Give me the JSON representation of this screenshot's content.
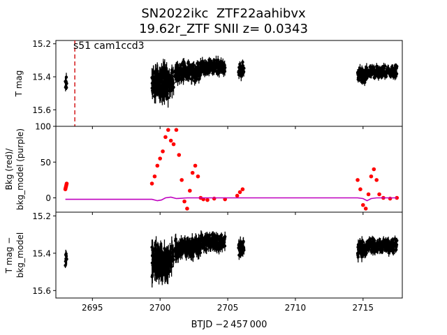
{
  "chart_data": {
    "type": "scatter",
    "title_line1": "SN2022ikc  ZTF22aahibvx",
    "title_line2": "19.62r_ZTF SNII z= 0.0343",
    "annotation": "s51 cam1ccd3",
    "xlabel": "BTJD −2 457 000",
    "xlim": [
      2692.3,
      2717.9
    ],
    "xticks": [
      2695,
      2700,
      2705,
      2710,
      2715
    ],
    "xtick_labels": [
      "2695",
      "2700",
      "2705",
      "2710",
      "2715"
    ],
    "vline_x": 2693.7,
    "colors": {
      "points": "#000000",
      "bkg": "#ff0000",
      "bkg_model": "#bf00bf",
      "vline": "#d62728"
    },
    "panels": [
      {
        "name": "T mag",
        "ylabel": [
          "T mag"
        ],
        "ylim": [
          15.18,
          15.7
        ],
        "inverted": true,
        "yticks": [
          15.2,
          15.4,
          15.6
        ],
        "ytick_labels": [
          "15.2",
          "15.4",
          "15.6"
        ],
        "segments": [
          {
            "x0": 2693.0,
            "x1": 2693.1,
            "center": 15.43,
            "spread": 0.05,
            "n": 8
          },
          {
            "x0": 2699.4,
            "x1": 2700.6,
            "center": 15.44,
            "spread": 0.1,
            "n": 140
          },
          {
            "x0": 2700.6,
            "x1": 2701.0,
            "center": 15.43,
            "spread": 0.09,
            "n": 30
          },
          {
            "x0": 2701.1,
            "x1": 2703.0,
            "center": 15.37,
            "spread": 0.06,
            "n": 160
          },
          {
            "x0": 2703.0,
            "x1": 2704.8,
            "center": 15.34,
            "spread": 0.05,
            "n": 130
          },
          {
            "x0": 2705.8,
            "x1": 2706.2,
            "center": 15.36,
            "spread": 0.05,
            "n": 30
          },
          {
            "x0": 2714.6,
            "x1": 2715.3,
            "center": 15.39,
            "spread": 0.05,
            "n": 60
          },
          {
            "x0": 2715.3,
            "x1": 2717.5,
            "center": 15.37,
            "spread": 0.04,
            "n": 160
          }
        ]
      },
      {
        "name": "Bkg",
        "ylabel": [
          "Bkg (red)/",
          "bkg_model (purple)"
        ],
        "ylim": [
          -20,
          100
        ],
        "inverted": false,
        "yticks": [
          0,
          50,
          100
        ],
        "ytick_labels": [
          "0",
          "50",
          "100"
        ],
        "bkg_curve": {
          "x": [
            2693.0,
            2693.05,
            2693.1,
            2699.4,
            2699.6,
            2699.8,
            2700.0,
            2700.2,
            2700.4,
            2700.6,
            2700.8,
            2701.0,
            2701.2,
            2701.4,
            2701.6,
            2701.8,
            2702.0,
            2702.2,
            2702.4,
            2702.6,
            2702.8,
            2703.0,
            2703.2,
            2703.5,
            2704.0,
            2704.8,
            2705.7,
            2705.9,
            2706.1,
            2714.6,
            2714.8,
            2715.0,
            2715.2,
            2715.4,
            2715.6,
            2715.8,
            2716.0,
            2716.2,
            2716.5,
            2717.0,
            2717.5
          ],
          "y": [
            12,
            16,
            20,
            20,
            30,
            45,
            55,
            65,
            85,
            95,
            80,
            75,
            95,
            60,
            25,
            -5,
            -15,
            10,
            35,
            45,
            30,
            0,
            -2,
            -3,
            -1,
            -2,
            3,
            8,
            12,
            25,
            12,
            -10,
            -15,
            5,
            30,
            40,
            25,
            5,
            0,
            -1,
            0
          ]
        },
        "bkg_model_curve": {
          "x": [
            2693.0,
            2699.4,
            2699.8,
            2700.1,
            2700.4,
            2700.8,
            2701.2,
            2702.0,
            2703.0,
            2704.8,
            2705.6,
            2706.2,
            2714.6,
            2715.0,
            2715.3,
            2715.6,
            2716.0,
            2717.5
          ],
          "y": [
            -2,
            -2,
            -4,
            -3,
            0,
            1,
            -1,
            0,
            0,
            0,
            0,
            0,
            0,
            -1,
            -4,
            -1,
            0,
            0
          ]
        }
      },
      {
        "name": "T mag - bkg_model",
        "ylabel": [
          "T mag −",
          "bkg_model"
        ],
        "ylim": [
          15.18,
          15.64
        ],
        "inverted": true,
        "yticks": [
          15.2,
          15.4,
          15.6
        ],
        "ytick_labels": [
          "15.2",
          "15.4",
          "15.6"
        ],
        "segments": [
          {
            "x0": 2693.0,
            "x1": 2693.1,
            "center": 15.43,
            "spread": 0.05,
            "n": 8
          },
          {
            "x0": 2699.4,
            "x1": 2700.6,
            "center": 15.44,
            "spread": 0.1,
            "n": 140
          },
          {
            "x0": 2700.6,
            "x1": 2701.0,
            "center": 15.42,
            "spread": 0.09,
            "n": 30
          },
          {
            "x0": 2701.1,
            "x1": 2703.0,
            "center": 15.37,
            "spread": 0.06,
            "n": 160
          },
          {
            "x0": 2703.0,
            "x1": 2704.8,
            "center": 15.34,
            "spread": 0.05,
            "n": 130
          },
          {
            "x0": 2705.8,
            "x1": 2706.2,
            "center": 15.37,
            "spread": 0.05,
            "n": 30
          },
          {
            "x0": 2714.6,
            "x1": 2715.3,
            "center": 15.38,
            "spread": 0.05,
            "n": 60
          },
          {
            "x0": 2715.3,
            "x1": 2717.5,
            "center": 15.36,
            "spread": 0.04,
            "n": 160
          }
        ]
      }
    ]
  }
}
